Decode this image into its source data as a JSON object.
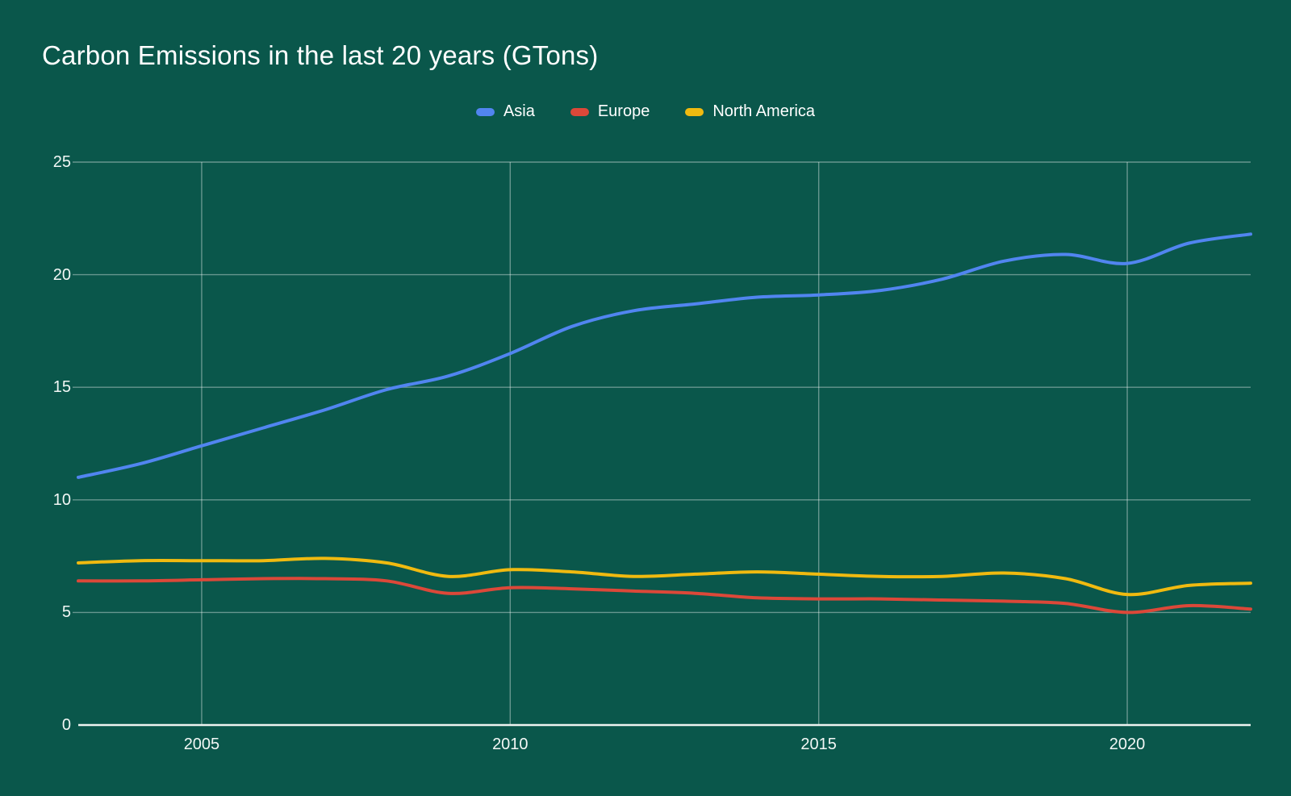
{
  "chart_data": {
    "type": "line",
    "title": "Carbon Emissions in the last 20 years (GTons)",
    "x": [
      2003,
      2004,
      2005,
      2006,
      2007,
      2008,
      2009,
      2010,
      2011,
      2012,
      2013,
      2014,
      2015,
      2016,
      2017,
      2018,
      2019,
      2020,
      2021,
      2022
    ],
    "series": [
      {
        "name": "Asia",
        "color": "#5185f0",
        "values": [
          11.0,
          11.6,
          12.4,
          13.2,
          14.0,
          14.9,
          15.5,
          16.5,
          17.7,
          18.4,
          18.7,
          19.0,
          19.1,
          19.3,
          19.8,
          20.6,
          20.9,
          20.5,
          21.4,
          21.8
        ]
      },
      {
        "name": "Europe",
        "color": "#dc4839",
        "values": [
          6.4,
          6.4,
          6.45,
          6.5,
          6.5,
          6.4,
          5.85,
          6.1,
          6.05,
          5.95,
          5.85,
          5.65,
          5.6,
          5.6,
          5.55,
          5.5,
          5.4,
          5.0,
          5.3,
          5.15
        ]
      },
      {
        "name": "North America",
        "color": "#f0ba10",
        "values": [
          7.2,
          7.3,
          7.3,
          7.3,
          7.4,
          7.2,
          6.6,
          6.9,
          6.8,
          6.6,
          6.7,
          6.8,
          6.7,
          6.6,
          6.6,
          6.75,
          6.5,
          5.8,
          6.2,
          6.3
        ]
      }
    ],
    "x_ticks": [
      "2005",
      "2010",
      "2015",
      "2020"
    ],
    "x_tick_years": [
      2005,
      2010,
      2015,
      2020
    ],
    "y_ticks": [
      "25",
      "20",
      "15",
      "10",
      "5",
      "0"
    ],
    "y_tick_values": [
      25,
      20,
      15,
      10,
      5,
      0
    ],
    "ylim": [
      0,
      25
    ],
    "x_range": [
      2003,
      2022
    ],
    "xlabel": "",
    "ylabel": "",
    "grid": true,
    "legend_position": "top",
    "background_color": "#0a574b",
    "gridline_color": "rgba(255,255,255,0.38)",
    "baseline_color": "#eef3f1",
    "axis_text_color": "#ffffff"
  }
}
